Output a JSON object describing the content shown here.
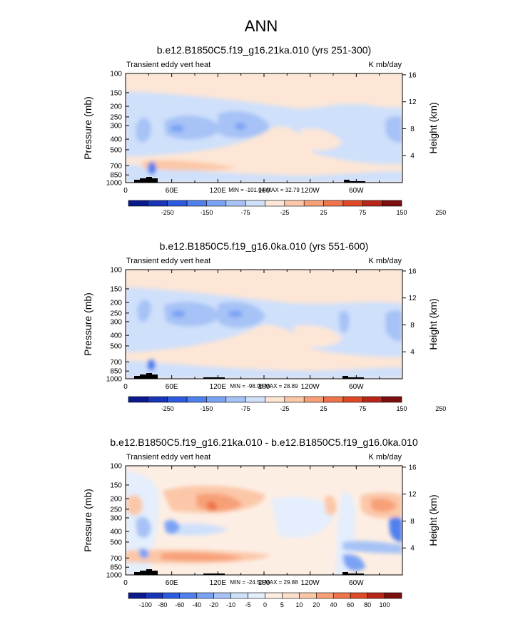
{
  "chart_data": [
    {
      "type": "heatmap",
      "figure_title": "ANN",
      "title": "b.e12.B1850C5.f19_g16.21ka.010 (yrs 251-300)",
      "left_label": "Transient eddy vert heat",
      "right_label": "K mb/day",
      "ylabel": "Pressure (mb)",
      "y2label": "Height (km)",
      "yticks": [
        "100",
        "150",
        "200",
        "250",
        "300",
        "400",
        "500",
        "700",
        "850",
        "1000"
      ],
      "y2ticks": [
        "16",
        "12",
        "8",
        "4"
      ],
      "xticks": [
        "0",
        "60E",
        "120E",
        "180",
        "120W",
        "60W"
      ],
      "minmax": "MIN = -101.04  MAX =  32.79",
      "colorbar_labels": [
        "-250",
        "-150",
        "-75",
        "-25",
        "25",
        "75",
        "150",
        "250"
      ],
      "colors": [
        "#0a1a8c",
        "#1835b8",
        "#2d5be0",
        "#4f80ee",
        "#7aa2f4",
        "#a6c2f6",
        "#cfe0fb",
        "#fde6d6",
        "#fbc7a8",
        "#f7a078",
        "#ef744c",
        "#df4a26",
        "#b8261a",
        "#7d0f0f"
      ]
    },
    {
      "type": "heatmap",
      "title": "b.e12.B1850C5.f19_g16.0ka.010 (yrs 551-600)",
      "left_label": "Transient eddy vert heat",
      "right_label": "K mb/day",
      "ylabel": "Pressure (mb)",
      "y2label": "Height (km)",
      "yticks": [
        "100",
        "150",
        "200",
        "250",
        "300",
        "400",
        "500",
        "700",
        "850",
        "1000"
      ],
      "y2ticks": [
        "16",
        "12",
        "8",
        "4"
      ],
      "xticks": [
        "0",
        "60E",
        "120E",
        "180",
        "120W",
        "60W"
      ],
      "minmax": "MIN = -98.98  MAX =  28.89",
      "colorbar_labels": [
        "-250",
        "-150",
        "-75",
        "-25",
        "25",
        "75",
        "150",
        "250"
      ],
      "colors": [
        "#0a1a8c",
        "#1835b8",
        "#2d5be0",
        "#4f80ee",
        "#7aa2f4",
        "#a6c2f6",
        "#cfe0fb",
        "#fde6d6",
        "#fbc7a8",
        "#f7a078",
        "#ef744c",
        "#df4a26",
        "#b8261a",
        "#7d0f0f"
      ]
    },
    {
      "type": "heatmap",
      "title": "b.e12.B1850C5.f19_g16.21ka.010 - b.e12.B1850C5.f19_g16.0ka.010",
      "left_label": "Transient eddy vert heat",
      "right_label": "K mb/day",
      "ylabel": "Pressure (mb)",
      "y2label": "Height (km)",
      "yticks": [
        "100",
        "150",
        "200",
        "250",
        "300",
        "400",
        "500",
        "700",
        "850",
        "1000"
      ],
      "y2ticks": [
        "16",
        "12",
        "8",
        "4"
      ],
      "xticks": [
        "0",
        "60E",
        "120E",
        "180",
        "120W",
        "60W"
      ],
      "minmax": "MIN = -24.53  MAX =  29.88",
      "colorbar_labels": [
        "-100",
        "-80",
        "-60",
        "-40",
        "-20",
        "-10",
        "-5",
        "0",
        "5",
        "10",
        "20",
        "40",
        "60",
        "80",
        "100"
      ],
      "colors": [
        "#0a1a8c",
        "#1835b8",
        "#2d5be0",
        "#4f80ee",
        "#7aa2f4",
        "#a6c2f6",
        "#cfe0fb",
        "#e4eefc",
        "#fdeee4",
        "#fde0cc",
        "#fbc7a8",
        "#f7a078",
        "#ef744c",
        "#df4a26",
        "#b8261a",
        "#7d0f0f"
      ]
    }
  ]
}
